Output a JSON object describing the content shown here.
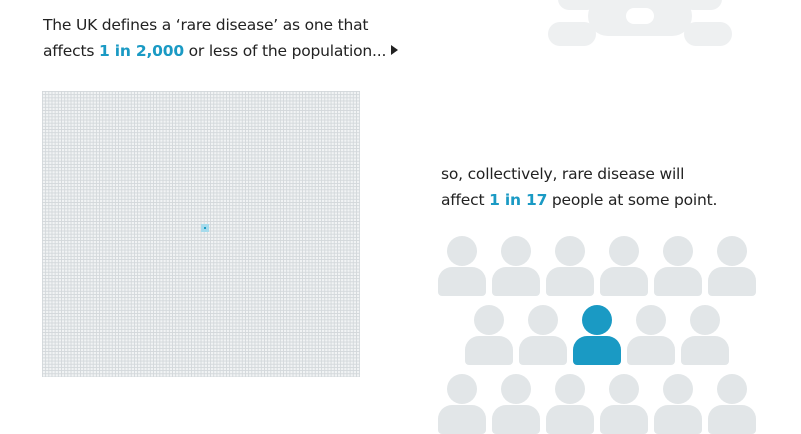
{
  "intro": {
    "part1": "The UK defines a ‘rare disease’ as one that",
    "part2_pre": "affects ",
    "part2_highlight": "1 in 2,000",
    "part2_post": " or less of the population..."
  },
  "collective": {
    "line1": "so, collectively, rare disease will",
    "line2_pre": "affect ",
    "line2_highlight": "1 in 17",
    "line2_post": " people at some point."
  },
  "colors": {
    "accent": "#1a9ac4",
    "person_grey": "#e2e6e8",
    "grid_background": "#f1f3f4",
    "text": "#222222"
  },
  "icons": [
    "arrow-right-icon",
    "person-icon",
    "decorative-shape"
  ],
  "people": {
    "total_visible": 17,
    "highlighted_index": 8
  }
}
